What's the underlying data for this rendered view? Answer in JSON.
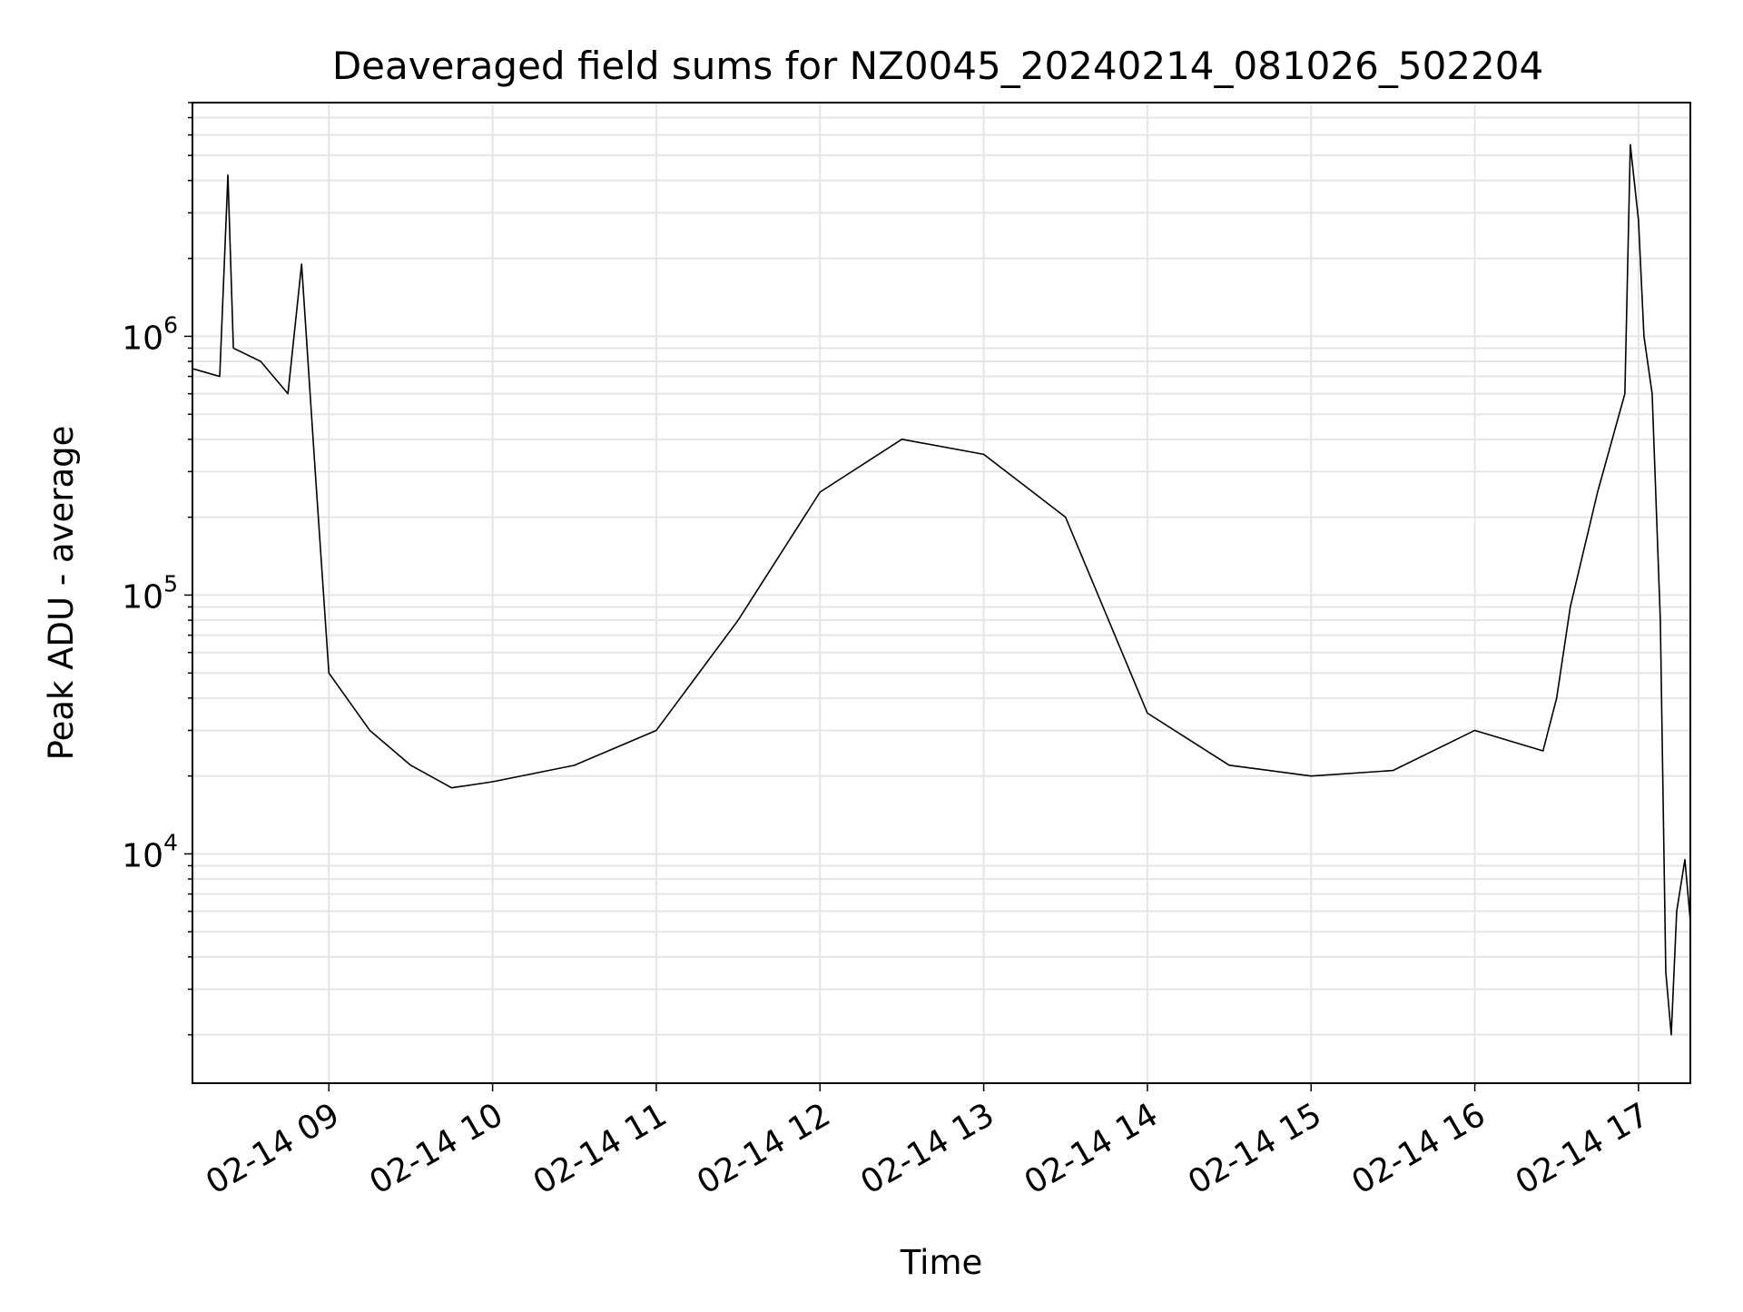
{
  "chart_data": {
    "type": "line",
    "title": "Deaveraged field sums for NZ0045_20240214_081026_502204",
    "xlabel": "Time",
    "ylabel": "Peak ADU - average",
    "y_scale": "log",
    "grid": true,
    "line_color": "#000000",
    "grid_color": "#e5e5e5",
    "xlim": [
      "2024-02-14T08:10",
      "2024-02-14T17:19"
    ],
    "ylim": [
      1300,
      8000000
    ],
    "x_ticks": [
      {
        "value": "2024-02-14T09:00",
        "label": "02-14 09"
      },
      {
        "value": "2024-02-14T10:00",
        "label": "02-14 10"
      },
      {
        "value": "2024-02-14T11:00",
        "label": "02-14 11"
      },
      {
        "value": "2024-02-14T12:00",
        "label": "02-14 12"
      },
      {
        "value": "2024-02-14T13:00",
        "label": "02-14 13"
      },
      {
        "value": "2024-02-14T14:00",
        "label": "02-14 14"
      },
      {
        "value": "2024-02-14T15:00",
        "label": "02-14 15"
      },
      {
        "value": "2024-02-14T16:00",
        "label": "02-14 16"
      },
      {
        "value": "2024-02-14T17:00",
        "label": "02-14 17"
      }
    ],
    "y_ticks": [
      {
        "value": 10000,
        "base": "10",
        "exponent": "4"
      },
      {
        "value": 100000,
        "base": "10",
        "exponent": "5"
      },
      {
        "value": 1000000,
        "base": "10",
        "exponent": "6"
      }
    ],
    "series": [
      {
        "points": [
          [
            "2024-02-14T08:10",
            750000
          ],
          [
            "2024-02-14T08:20",
            700000
          ],
          [
            "2024-02-14T08:23",
            4200000
          ],
          [
            "2024-02-14T08:25",
            900000
          ],
          [
            "2024-02-14T08:35",
            800000
          ],
          [
            "2024-02-14T08:45",
            600000
          ],
          [
            "2024-02-14T08:50",
            1900000
          ],
          [
            "2024-02-14T08:55",
            300000
          ],
          [
            "2024-02-14T09:00",
            50000
          ],
          [
            "2024-02-14T09:15",
            30000
          ],
          [
            "2024-02-14T09:30",
            22000
          ],
          [
            "2024-02-14T09:45",
            18000
          ],
          [
            "2024-02-14T10:00",
            19000
          ],
          [
            "2024-02-14T10:30",
            22000
          ],
          [
            "2024-02-14T11:00",
            30000
          ],
          [
            "2024-02-14T11:30",
            80000
          ],
          [
            "2024-02-14T12:00",
            250000
          ],
          [
            "2024-02-14T12:30",
            400000
          ],
          [
            "2024-02-14T13:00",
            350000
          ],
          [
            "2024-02-14T13:30",
            200000
          ],
          [
            "2024-02-14T14:00",
            35000
          ],
          [
            "2024-02-14T14:30",
            22000
          ],
          [
            "2024-02-14T15:00",
            20000
          ],
          [
            "2024-02-14T15:30",
            21000
          ],
          [
            "2024-02-14T16:00",
            30000
          ],
          [
            "2024-02-14T16:25",
            25000
          ],
          [
            "2024-02-14T16:30",
            40000
          ],
          [
            "2024-02-14T16:35",
            90000
          ],
          [
            "2024-02-14T16:45",
            250000
          ],
          [
            "2024-02-14T16:55",
            600000
          ],
          [
            "2024-02-14T16:57",
            5500000
          ],
          [
            "2024-02-14T17:00",
            2800000
          ],
          [
            "2024-02-14T17:02",
            1000000
          ],
          [
            "2024-02-14T17:05",
            600000
          ],
          [
            "2024-02-14T17:08",
            80000
          ],
          [
            "2024-02-14T17:10",
            3500
          ],
          [
            "2024-02-14T17:12",
            2000
          ],
          [
            "2024-02-14T17:14",
            6000
          ],
          [
            "2024-02-14T17:17",
            9500
          ],
          [
            "2024-02-14T17:19",
            5500
          ]
        ]
      }
    ]
  }
}
